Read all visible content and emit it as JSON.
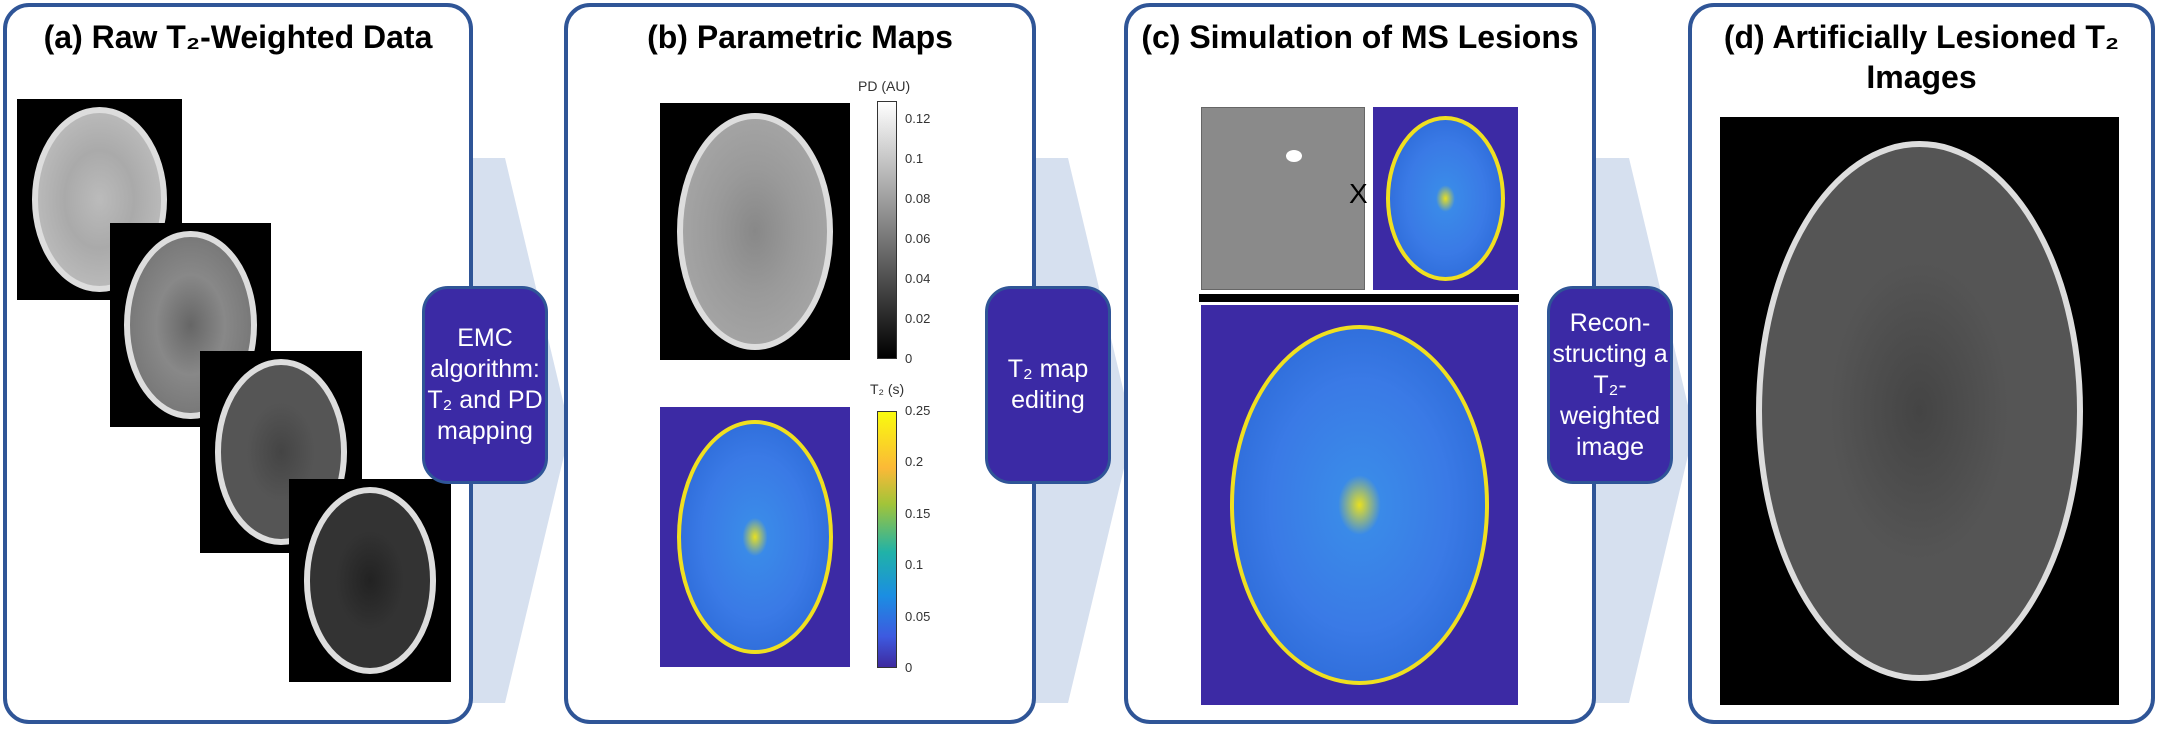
{
  "panels": [
    {
      "title": "(a) Raw T₂-Weighted Data"
    },
    {
      "title": "(b) Parametric Maps"
    },
    {
      "title": "(c) Simulation of MS Lesions"
    },
    {
      "title": "(d) Artificially Lesioned T₂ Images"
    }
  ],
  "steps": [
    {
      "label": "EMC algorithm: T₂ and PD mapping"
    },
    {
      "label": "T₂ map editing"
    },
    {
      "label": "Recon-structing a T₂-weighted image"
    }
  ],
  "colorbars": {
    "pd": {
      "label": "PD (AU)",
      "ticks": [
        "0.12",
        "0.1",
        "0.08",
        "0.06",
        "0.04",
        "0.02",
        "0"
      ],
      "colormap": "gray"
    },
    "t2": {
      "label": "T₂ (s)",
      "ticks": [
        "0.25",
        "0.2",
        "0.15",
        "0.1",
        "0.05",
        "0"
      ],
      "colormap": "parula"
    }
  },
  "multiply_symbol": "X",
  "colors": {
    "border": "#2f5597",
    "step_fill": "#3b2aa5",
    "arrow": "#d6e0ef",
    "map_background": "#3c2aa4"
  }
}
